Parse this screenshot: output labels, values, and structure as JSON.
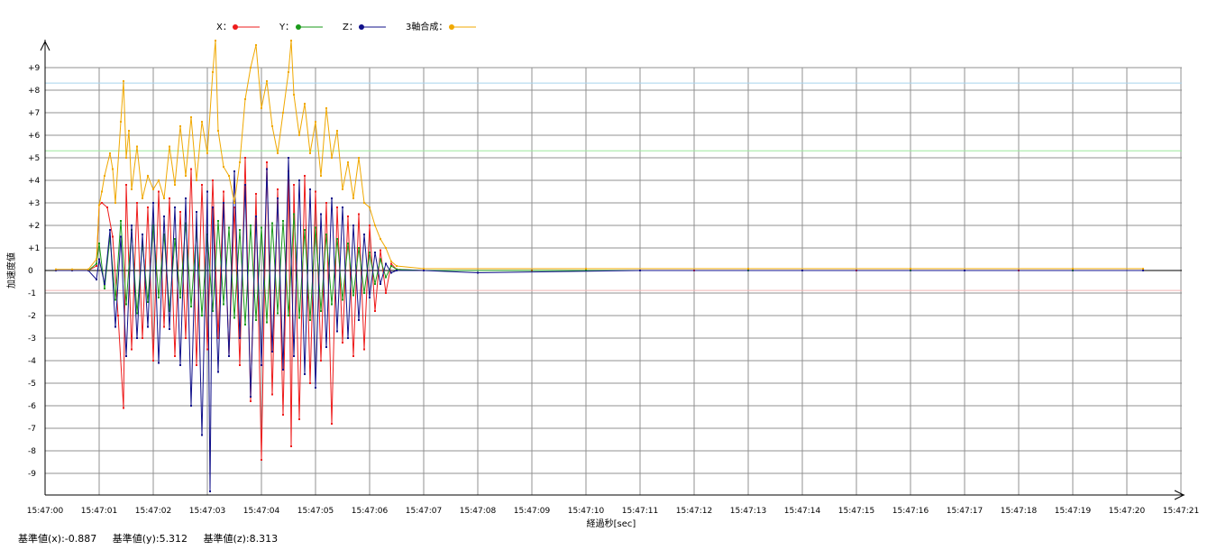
{
  "chart_data": {
    "type": "line",
    "xlabel": "経過秒[sec]",
    "ylabel": "加速度値",
    "x_ticks": [
      "15:47:00",
      "15:47:01",
      "15:47:02",
      "15:47:03",
      "15:47:04",
      "15:47:05",
      "15:47:06",
      "15:47:07",
      "15:47:08",
      "15:47:09",
      "15:47:10",
      "15:47:11",
      "15:47:12",
      "15:47:13",
      "15:47:14",
      "15:47:15",
      "15:47:16",
      "15:47:17",
      "15:47:18",
      "15:47:19",
      "15:47:20",
      "15:47:21"
    ],
    "y_ticks": [
      "+9",
      "+8",
      "+7",
      "+6",
      "+5",
      "+4",
      "+3",
      "+2",
      "+1",
      "0",
      "-1",
      "-2",
      "-3",
      "-4",
      "-5",
      "-6",
      "-7",
      "-8",
      "-9"
    ],
    "ylim": [
      -10,
      10
    ],
    "xlim_seconds": [
      0,
      21
    ],
    "grid": true,
    "legend_position": "top",
    "series": [
      {
        "name": "X",
        "color": "#ee1c1c",
        "points": [
          [
            0.2,
            0.0
          ],
          [
            0.5,
            0.0
          ],
          [
            0.8,
            0.0
          ],
          [
            0.95,
            0.2
          ],
          [
            1.0,
            2.9
          ],
          [
            1.05,
            3.0
          ],
          [
            1.15,
            2.8
          ],
          [
            1.25,
            1.5
          ],
          [
            1.35,
            -2.0
          ],
          [
            1.45,
            -6.1
          ],
          [
            1.5,
            3.8
          ],
          [
            1.6,
            -3.5
          ],
          [
            1.7,
            3.0
          ],
          [
            1.8,
            -3.0
          ],
          [
            1.9,
            2.8
          ],
          [
            2.0,
            -4.0
          ],
          [
            2.1,
            3.5
          ],
          [
            2.2,
            -2.5
          ],
          [
            2.3,
            3.2
          ],
          [
            2.4,
            -3.8
          ],
          [
            2.5,
            2.6
          ],
          [
            2.6,
            -3.0
          ],
          [
            2.7,
            4.5
          ],
          [
            2.8,
            -4.2
          ],
          [
            2.9,
            3.8
          ],
          [
            3.0,
            -3.5
          ],
          [
            3.1,
            4.0
          ],
          [
            3.2,
            -3.0
          ],
          [
            3.3,
            3.5
          ],
          [
            3.4,
            -3.8
          ],
          [
            3.5,
            2.8
          ],
          [
            3.6,
            -4.2
          ],
          [
            3.7,
            5.0
          ],
          [
            3.8,
            -5.8
          ],
          [
            3.9,
            3.4
          ],
          [
            4.0,
            -8.4
          ],
          [
            4.1,
            4.8
          ],
          [
            4.2,
            -5.5
          ],
          [
            4.3,
            3.6
          ],
          [
            4.4,
            -6.4
          ],
          [
            4.5,
            4.4
          ],
          [
            4.55,
            -7.8
          ],
          [
            4.6,
            3.8
          ],
          [
            4.7,
            -6.6
          ],
          [
            4.8,
            4.2
          ],
          [
            4.9,
            -5.0
          ],
          [
            5.0,
            3.5
          ],
          [
            5.1,
            -4.0
          ],
          [
            5.2,
            3.0
          ],
          [
            5.3,
            -6.8
          ],
          [
            5.4,
            2.8
          ],
          [
            5.5,
            -3.2
          ],
          [
            5.6,
            2.4
          ],
          [
            5.7,
            -3.8
          ],
          [
            5.8,
            2.5
          ],
          [
            5.9,
            -3.5
          ],
          [
            6.0,
            2.0
          ],
          [
            6.1,
            -1.8
          ],
          [
            6.2,
            0.9
          ],
          [
            6.3,
            -1.0
          ],
          [
            6.4,
            0.3
          ],
          [
            6.5,
            0.05
          ],
          [
            7.0,
            0.0
          ],
          [
            9.0,
            0.0
          ],
          [
            12.0,
            0.0
          ],
          [
            15.0,
            0.0
          ],
          [
            18.0,
            0.0
          ],
          [
            20.3,
            0.0
          ]
        ]
      },
      {
        "name": "Y",
        "color": "#1a9a1a",
        "points": [
          [
            0.2,
            0.0
          ],
          [
            0.5,
            0.0
          ],
          [
            0.8,
            0.0
          ],
          [
            0.95,
            0.3
          ],
          [
            1.0,
            1.2
          ],
          [
            1.1,
            -0.8
          ],
          [
            1.2,
            1.5
          ],
          [
            1.3,
            -1.3
          ],
          [
            1.4,
            2.2
          ],
          [
            1.5,
            -1.5
          ],
          [
            1.6,
            1.8
          ],
          [
            1.7,
            -1.9
          ],
          [
            1.8,
            1.2
          ],
          [
            1.9,
            -1.4
          ],
          [
            2.0,
            2.0
          ],
          [
            2.1,
            -1.2
          ],
          [
            2.2,
            1.6
          ],
          [
            2.3,
            -1.8
          ],
          [
            2.4,
            1.4
          ],
          [
            2.5,
            -1.2
          ],
          [
            2.6,
            2.1
          ],
          [
            2.7,
            -1.6
          ],
          [
            2.8,
            1.8
          ],
          [
            2.9,
            -2.0
          ],
          [
            3.0,
            1.6
          ],
          [
            3.1,
            -1.8
          ],
          [
            3.2,
            2.2
          ],
          [
            3.3,
            -1.5
          ],
          [
            3.4,
            1.9
          ],
          [
            3.5,
            -2.1
          ],
          [
            3.6,
            1.8
          ],
          [
            3.7,
            -2.4
          ],
          [
            3.8,
            2.0
          ],
          [
            3.9,
            -2.2
          ],
          [
            4.0,
            1.9
          ],
          [
            4.1,
            -2.3
          ],
          [
            4.2,
            2.1
          ],
          [
            4.3,
            -1.9
          ],
          [
            4.4,
            2.2
          ],
          [
            4.5,
            -2.0
          ],
          [
            4.6,
            2.5
          ],
          [
            4.7,
            -2.1
          ],
          [
            4.8,
            1.8
          ],
          [
            4.9,
            -2.2
          ],
          [
            5.0,
            1.9
          ],
          [
            5.1,
            -1.8
          ],
          [
            5.2,
            1.6
          ],
          [
            5.3,
            -1.5
          ],
          [
            5.4,
            1.4
          ],
          [
            5.5,
            -1.3
          ],
          [
            5.6,
            1.2
          ],
          [
            5.7,
            -1.1
          ],
          [
            5.8,
            1.0
          ],
          [
            5.9,
            -1.0
          ],
          [
            6.0,
            0.8
          ],
          [
            6.1,
            -0.6
          ],
          [
            6.2,
            0.5
          ],
          [
            6.3,
            -0.3
          ],
          [
            6.4,
            0.2
          ],
          [
            6.5,
            0.05
          ],
          [
            7.0,
            0.0
          ],
          [
            10.0,
            0.0
          ],
          [
            13.0,
            0.0
          ],
          [
            16.0,
            0.0
          ],
          [
            19.0,
            0.0
          ],
          [
            20.3,
            0.0
          ]
        ]
      },
      {
        "name": "Z",
        "color": "#10108a",
        "points": [
          [
            0.2,
            0.0
          ],
          [
            0.5,
            0.0
          ],
          [
            0.8,
            0.0
          ],
          [
            0.95,
            -0.4
          ],
          [
            1.0,
            0.5
          ],
          [
            1.1,
            -0.6
          ],
          [
            1.2,
            1.8
          ],
          [
            1.3,
            -2.5
          ],
          [
            1.4,
            1.5
          ],
          [
            1.5,
            -3.8
          ],
          [
            1.6,
            2.0
          ],
          [
            1.7,
            -3.0
          ],
          [
            1.8,
            1.6
          ],
          [
            1.9,
            -2.5
          ],
          [
            2.0,
            3.0
          ],
          [
            2.1,
            -4.1
          ],
          [
            2.2,
            2.4
          ],
          [
            2.3,
            -2.6
          ],
          [
            2.4,
            2.8
          ],
          [
            2.5,
            -4.2
          ],
          [
            2.6,
            3.2
          ],
          [
            2.7,
            -6.0
          ],
          [
            2.8,
            2.6
          ],
          [
            2.9,
            -7.3
          ],
          [
            3.0,
            3.5
          ],
          [
            3.05,
            -9.8
          ],
          [
            3.1,
            2.8
          ],
          [
            3.2,
            -4.5
          ],
          [
            3.3,
            3.0
          ],
          [
            3.4,
            -3.8
          ],
          [
            3.5,
            4.4
          ],
          [
            3.6,
            -3.0
          ],
          [
            3.7,
            3.8
          ],
          [
            3.8,
            -5.6
          ],
          [
            3.9,
            2.4
          ],
          [
            4.0,
            -4.2
          ],
          [
            4.1,
            4.5
          ],
          [
            4.2,
            -3.6
          ],
          [
            4.3,
            3.2
          ],
          [
            4.4,
            -4.4
          ],
          [
            4.5,
            5.0
          ],
          [
            4.6,
            -3.8
          ],
          [
            4.7,
            4.0
          ],
          [
            4.8,
            -4.6
          ],
          [
            4.9,
            3.6
          ],
          [
            5.0,
            -5.2
          ],
          [
            5.1,
            2.5
          ],
          [
            5.2,
            -3.4
          ],
          [
            5.3,
            3.2
          ],
          [
            5.4,
            -2.7
          ],
          [
            5.5,
            2.8
          ],
          [
            5.6,
            -3.0
          ],
          [
            5.7,
            2.0
          ],
          [
            5.8,
            -2.2
          ],
          [
            5.9,
            1.6
          ],
          [
            6.0,
            -1.2
          ],
          [
            6.1,
            0.8
          ],
          [
            6.2,
            -0.6
          ],
          [
            6.3,
            0.3
          ],
          [
            6.4,
            -0.1
          ],
          [
            6.5,
            0.0
          ],
          [
            7.0,
            0.0
          ],
          [
            8.0,
            -0.1
          ],
          [
            11.0,
            0.0
          ],
          [
            14.0,
            0.0
          ],
          [
            17.0,
            0.0
          ],
          [
            20.3,
            0.0
          ]
        ]
      },
      {
        "name": "3軸合成",
        "color": "#f0a800",
        "points": [
          [
            0.2,
            0.05
          ],
          [
            0.5,
            0.05
          ],
          [
            0.8,
            0.05
          ],
          [
            0.95,
            0.5
          ],
          [
            1.0,
            2.9
          ],
          [
            1.05,
            3.5
          ],
          [
            1.1,
            4.2
          ],
          [
            1.2,
            5.2
          ],
          [
            1.25,
            4.5
          ],
          [
            1.3,
            3.0
          ],
          [
            1.4,
            6.6
          ],
          [
            1.45,
            8.4
          ],
          [
            1.5,
            5.0
          ],
          [
            1.55,
            6.2
          ],
          [
            1.6,
            3.6
          ],
          [
            1.7,
            5.5
          ],
          [
            1.8,
            3.2
          ],
          [
            1.9,
            4.2
          ],
          [
            2.0,
            3.6
          ],
          [
            2.1,
            4.0
          ],
          [
            2.2,
            3.2
          ],
          [
            2.3,
            5.5
          ],
          [
            2.4,
            3.8
          ],
          [
            2.5,
            6.4
          ],
          [
            2.6,
            4.2
          ],
          [
            2.7,
            6.8
          ],
          [
            2.8,
            4.0
          ],
          [
            2.9,
            6.6
          ],
          [
            3.0,
            5.2
          ],
          [
            3.1,
            8.8
          ],
          [
            3.15,
            10.2
          ],
          [
            3.2,
            6.2
          ],
          [
            3.3,
            4.6
          ],
          [
            3.4,
            4.2
          ],
          [
            3.5,
            3.0
          ],
          [
            3.6,
            4.8
          ],
          [
            3.7,
            7.6
          ],
          [
            3.8,
            9.0
          ],
          [
            3.9,
            10.0
          ],
          [
            4.0,
            7.2
          ],
          [
            4.1,
            8.4
          ],
          [
            4.2,
            6.4
          ],
          [
            4.3,
            5.2
          ],
          [
            4.4,
            7.0
          ],
          [
            4.5,
            8.8
          ],
          [
            4.55,
            10.2
          ],
          [
            4.6,
            7.8
          ],
          [
            4.7,
            6.0
          ],
          [
            4.8,
            7.4
          ],
          [
            4.9,
            5.2
          ],
          [
            5.0,
            6.6
          ],
          [
            5.1,
            4.2
          ],
          [
            5.2,
            7.2
          ],
          [
            5.3,
            5.0
          ],
          [
            5.4,
            6.2
          ],
          [
            5.5,
            3.6
          ],
          [
            5.6,
            4.8
          ],
          [
            5.7,
            3.2
          ],
          [
            5.8,
            5.0
          ],
          [
            5.9,
            3.0
          ],
          [
            6.0,
            2.8
          ],
          [
            6.1,
            2.0
          ],
          [
            6.2,
            1.4
          ],
          [
            6.3,
            1.0
          ],
          [
            6.4,
            0.4
          ],
          [
            6.5,
            0.2
          ],
          [
            7.0,
            0.08
          ],
          [
            10.0,
            0.08
          ],
          [
            13.0,
            0.08
          ],
          [
            16.0,
            0.08
          ],
          [
            19.0,
            0.08
          ],
          [
            20.3,
            0.08
          ]
        ]
      }
    ],
    "reference_lines": [
      {
        "value": 8.313,
        "color": "#a8d4ee"
      },
      {
        "value": 5.312,
        "color": "#9ee89e"
      },
      {
        "value": -0.887,
        "color": "#f0b4b4"
      }
    ]
  },
  "legend": [
    {
      "label": "X：",
      "color": "#ee1c1c"
    },
    {
      "label": "Y：",
      "color": "#1a9a1a"
    },
    {
      "label": "Z：",
      "color": "#10108a"
    },
    {
      "label": "3軸合成：",
      "color": "#f0a800"
    }
  ],
  "footer": {
    "ref_x": "基準値(x):-0.887",
    "ref_y": "基準値(y):5.312",
    "ref_z": "基準値(z):8.313"
  }
}
